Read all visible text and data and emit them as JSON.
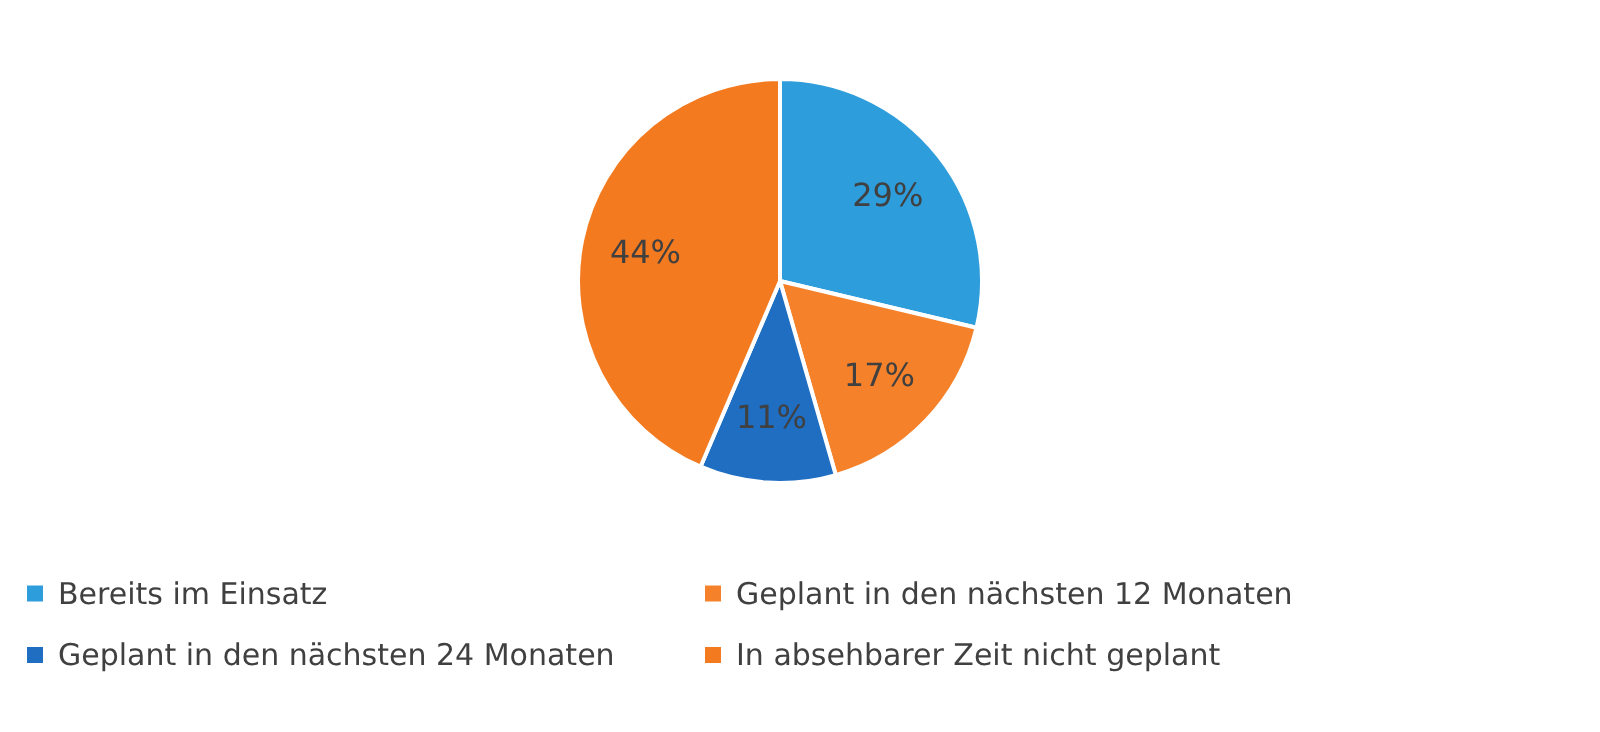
{
  "chart_data": {
    "type": "pie",
    "categories": [
      "Bereits im Einsatz",
      "Geplant in den nächsten 12 Monaten",
      "Geplant in den nächsten 24 Monaten",
      "In absehbarer Zeit nicht geplant"
    ],
    "values": [
      29,
      17,
      11,
      44
    ],
    "colors": [
      "#2e9ddb",
      "#f5822b",
      "#1f6ec2",
      "#f47a1f"
    ],
    "value_labels": [
      "29%",
      "17%",
      "11%",
      "44%"
    ],
    "legend": "bottom"
  }
}
